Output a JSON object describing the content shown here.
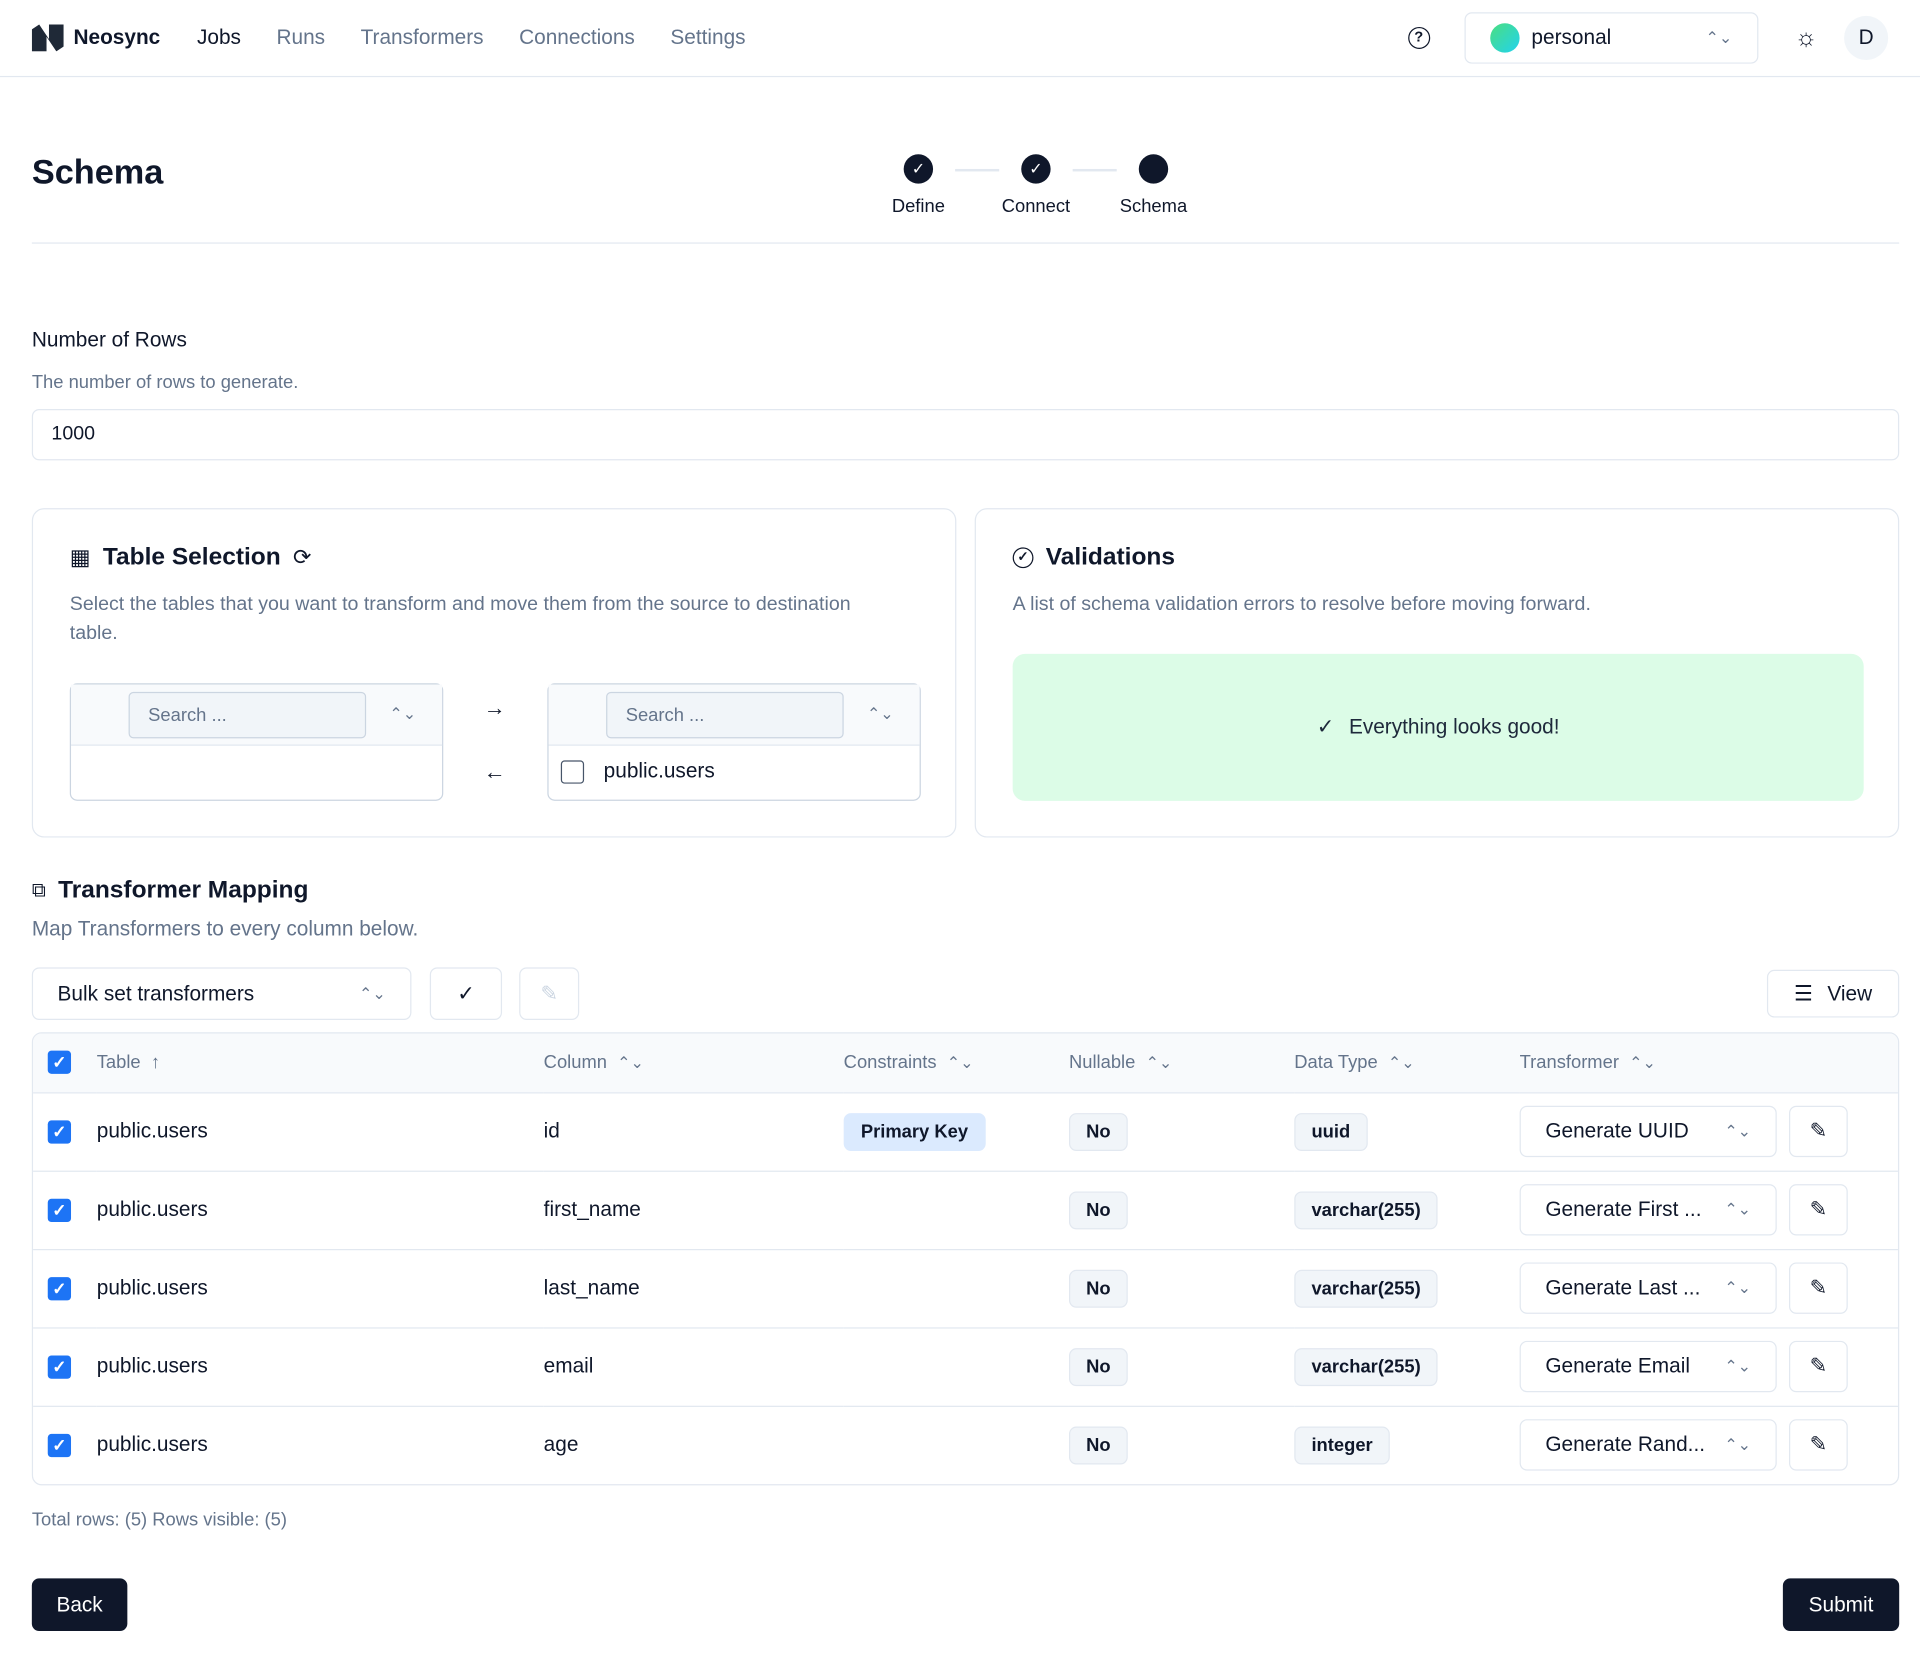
{
  "nav": {
    "brand": "Neosync",
    "links": [
      "Jobs",
      "Runs",
      "Transformers",
      "Connections",
      "Settings"
    ],
    "active": "Jobs",
    "org": "personal",
    "avatar": "D"
  },
  "page": {
    "title": "Schema",
    "steps": [
      "Define",
      "Connect",
      "Schema"
    ]
  },
  "rows_field": {
    "label": "Number of Rows",
    "description": "The number of rows to generate.",
    "value": "1000"
  },
  "table_selection": {
    "title": "Table Selection",
    "description": "Select the tables that you want to transform and move them from the source to destination table.",
    "left_search_placeholder": "Search ...",
    "right_search_placeholder": "Search ...",
    "right_items": [
      "public.users"
    ]
  },
  "validations": {
    "title": "Validations",
    "description": "A list of schema validation errors to resolve before moving forward.",
    "status": "Everything looks good!",
    "status_color": "#dcfce7"
  },
  "mapping": {
    "title": "Transformer Mapping",
    "description": "Map Transformers to every column below.",
    "bulk_placeholder": "Bulk set transformers",
    "view_label": "View",
    "columns": [
      "Table",
      "Column",
      "Constraints",
      "Nullable",
      "Data Type",
      "Transformer"
    ],
    "rows": [
      {
        "table": "public.users",
        "column": "id",
        "constraint": "Primary Key",
        "nullable": "No",
        "type": "uuid",
        "transformer": "Generate UUID"
      },
      {
        "table": "public.users",
        "column": "first_name",
        "constraint": "",
        "nullable": "No",
        "type": "varchar(255)",
        "transformer": "Generate First ..."
      },
      {
        "table": "public.users",
        "column": "last_name",
        "constraint": "",
        "nullable": "No",
        "type": "varchar(255)",
        "transformer": "Generate Last ..."
      },
      {
        "table": "public.users",
        "column": "email",
        "constraint": "",
        "nullable": "No",
        "type": "varchar(255)",
        "transformer": "Generate Email"
      },
      {
        "table": "public.users",
        "column": "age",
        "constraint": "",
        "nullable": "No",
        "type": "integer",
        "transformer": "Generate Rand..."
      }
    ],
    "footer": "Total rows: (5) Rows visible: (5)"
  },
  "actions": {
    "back": "Back",
    "submit": "Submit"
  },
  "colors": {
    "accent": "#1d74f5",
    "primary": "#0f172a"
  }
}
